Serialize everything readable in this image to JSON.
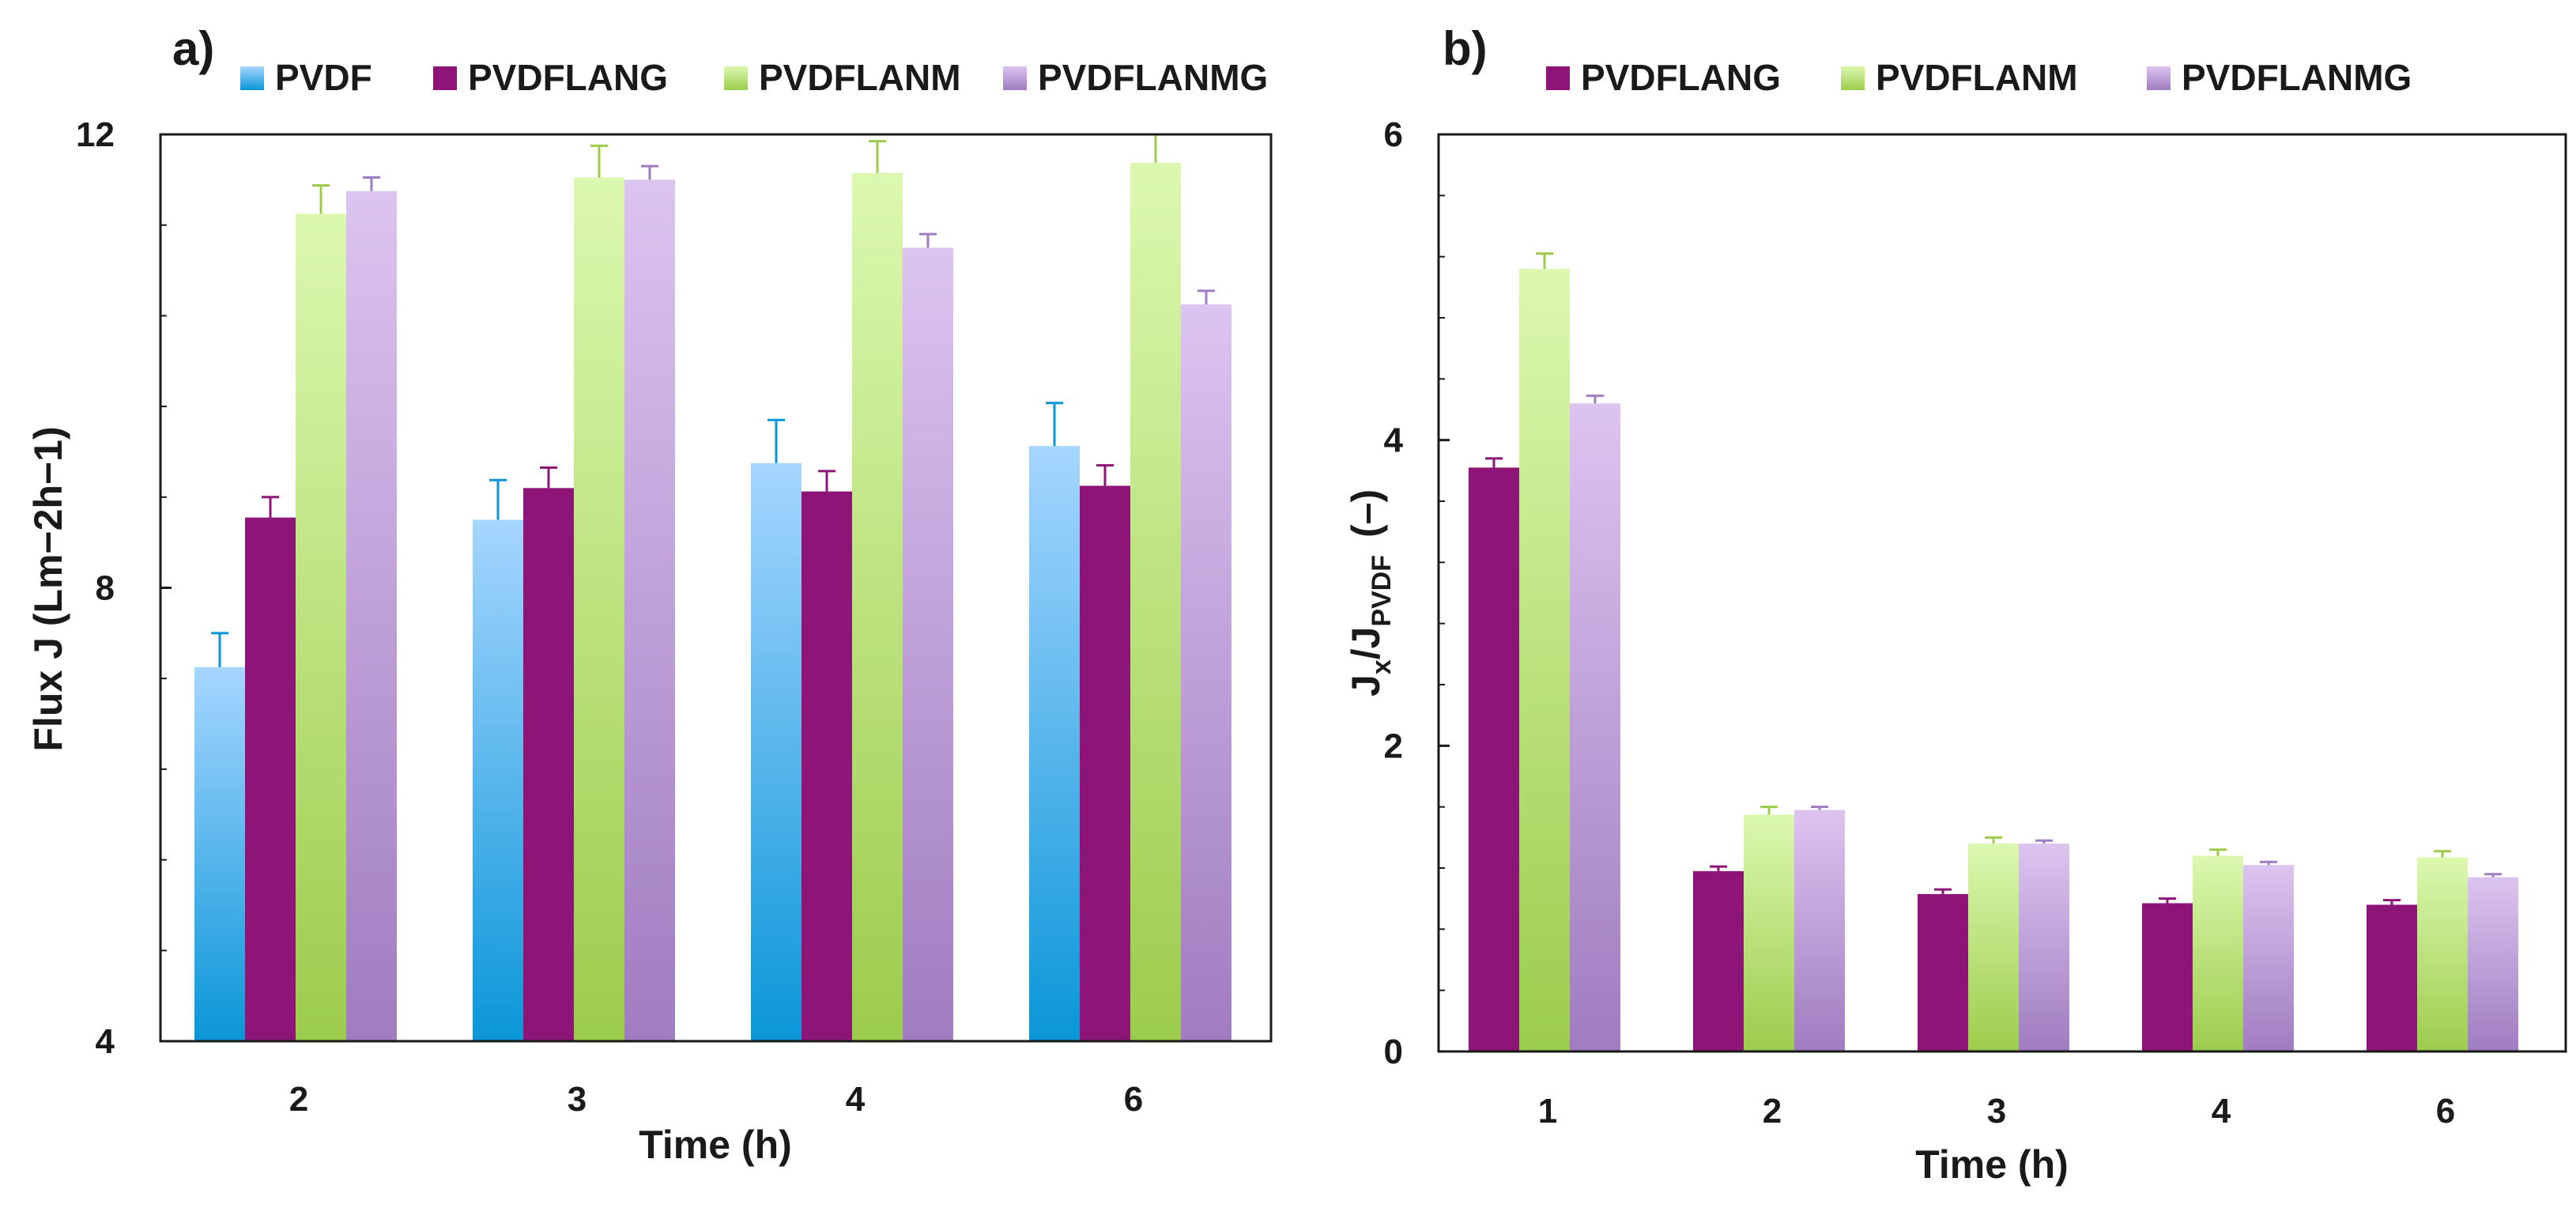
{
  "chart_data": [
    {
      "panel_label": "a)",
      "type": "bar",
      "xlabel": "Time (h)",
      "ylabel": "Flux J (Lm−2h−1)",
      "ylim": [
        4,
        12
      ],
      "yticks": [
        "4",
        "8",
        "12"
      ],
      "minor_ticks": true,
      "categories": [
        "2",
        "3",
        "4",
        "6"
      ],
      "legend_position": "top",
      "series": [
        {
          "name": "PVDF",
          "color_top": "#a6d6ff",
          "color_bottom": "#0a96d8",
          "values": [
            7.3,
            8.6,
            9.1,
            9.25
          ],
          "errors": [
            0.3,
            0.35,
            0.38,
            0.38
          ]
        },
        {
          "name": "PVDFLANG",
          "color_top": "#8e1578",
          "color_bottom": "#8e1578",
          "values": [
            8.62,
            8.88,
            8.85,
            8.9
          ],
          "errors": [
            0.18,
            0.18,
            0.18,
            0.18
          ]
        },
        {
          "name": "PVDFLANM",
          "color_top": "#dcf8b0",
          "color_bottom": "#9ccc4c",
          "values": [
            11.3,
            11.62,
            11.66,
            11.75
          ],
          "errors": [
            0.25,
            0.28,
            0.28,
            0.25
          ]
        },
        {
          "name": "PVDFLANMG",
          "color_top": "#dcc4f0",
          "color_bottom": "#a07cc0",
          "values": [
            11.5,
            11.6,
            11.0,
            10.5
          ],
          "errors": [
            0.12,
            0.12,
            0.12,
            0.12
          ]
        }
      ]
    },
    {
      "panel_label": "b)",
      "type": "bar",
      "xlabel": "Time (h)",
      "ylabel_main": "J",
      "ylabel_sub1": "x",
      "ylabel_mid": "/J",
      "ylabel_sub2": "PVDF",
      "ylabel_tail": "(–)",
      "ylim": [
        0,
        6
      ],
      "yticks": [
        "0",
        "2",
        "4",
        "6"
      ],
      "minor_ticks": true,
      "categories": [
        "1",
        "2",
        "3",
        "4",
        "6"
      ],
      "legend_position": "top",
      "series": [
        {
          "name": "PVDFLANG",
          "color_top": "#8e1578",
          "color_bottom": "#8e1578",
          "values": [
            3.82,
            1.18,
            1.03,
            0.97,
            0.96
          ],
          "errors": [
            0.06,
            0.03,
            0.03,
            0.03,
            0.03
          ]
        },
        {
          "name": "PVDFLANM",
          "color_top": "#dcf8b0",
          "color_bottom": "#9ccc4c",
          "values": [
            5.12,
            1.55,
            1.36,
            1.28,
            1.27
          ],
          "errors": [
            0.1,
            0.05,
            0.04,
            0.04,
            0.04
          ]
        },
        {
          "name": "PVDFLANMG",
          "color_top": "#dcc4f0",
          "color_bottom": "#a07cc0",
          "values": [
            4.24,
            1.58,
            1.36,
            1.22,
            1.14
          ],
          "errors": [
            0.05,
            0.02,
            0.02,
            0.02,
            0.02
          ]
        }
      ]
    }
  ]
}
